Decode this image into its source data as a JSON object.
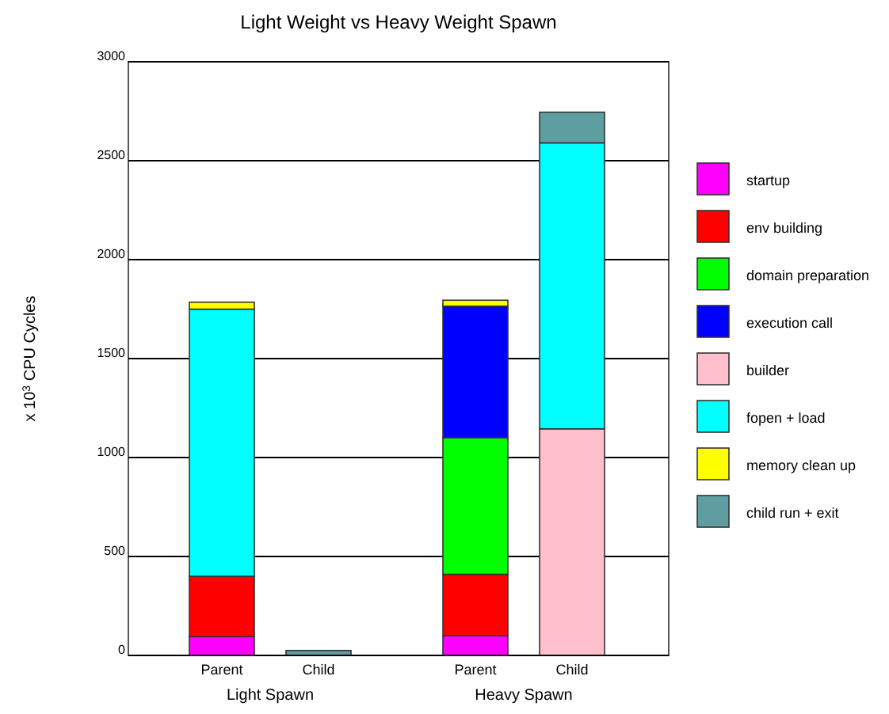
{
  "chart_data": {
    "type": "bar",
    "title": "Light Weight vs Heavy Weight Spawn",
    "ylabel": "x 10$^{3}$  CPU Cycles",
    "categories": [
      "Parent",
      "Child",
      "Parent",
      "Child"
    ],
    "annotations": [
      "Light Spawn",
      "Heavy Spawn"
    ],
    "stacked": true,
    "ylim": [
      0,
      3000
    ],
    "yticks": [
      0,
      500,
      1000,
      1500,
      2000,
      2500,
      3000
    ],
    "grid": "y",
    "legend": "right",
    "series": [
      {
        "name": "startup",
        "color": "#ff00ff",
        "values": [
          95,
          null,
          100,
          null
        ]
      },
      {
        "name": "env building",
        "color": "#ff0000",
        "values": [
          305,
          null,
          310,
          null
        ]
      },
      {
        "name": "domain preparation",
        "color": "#00ff00",
        "values": [
          null,
          null,
          690,
          null
        ]
      },
      {
        "name": "execution call",
        "color": "#0000ff",
        "values": [
          null,
          null,
          665,
          null
        ]
      },
      {
        "name": "builder",
        "color": "#ffc0cb",
        "values": [
          null,
          null,
          null,
          1145
        ]
      },
      {
        "name": "fopen + load",
        "color": "#00ffff",
        "values": [
          1350,
          null,
          null,
          1445
        ]
      },
      {
        "name": "memory clean up",
        "color": "#ffff00",
        "values": [
          35,
          null,
          30,
          null
        ]
      },
      {
        "name": "child run + exit",
        "color": "#5f9ea0",
        "values": [
          null,
          25,
          null,
          155
        ]
      }
    ]
  }
}
